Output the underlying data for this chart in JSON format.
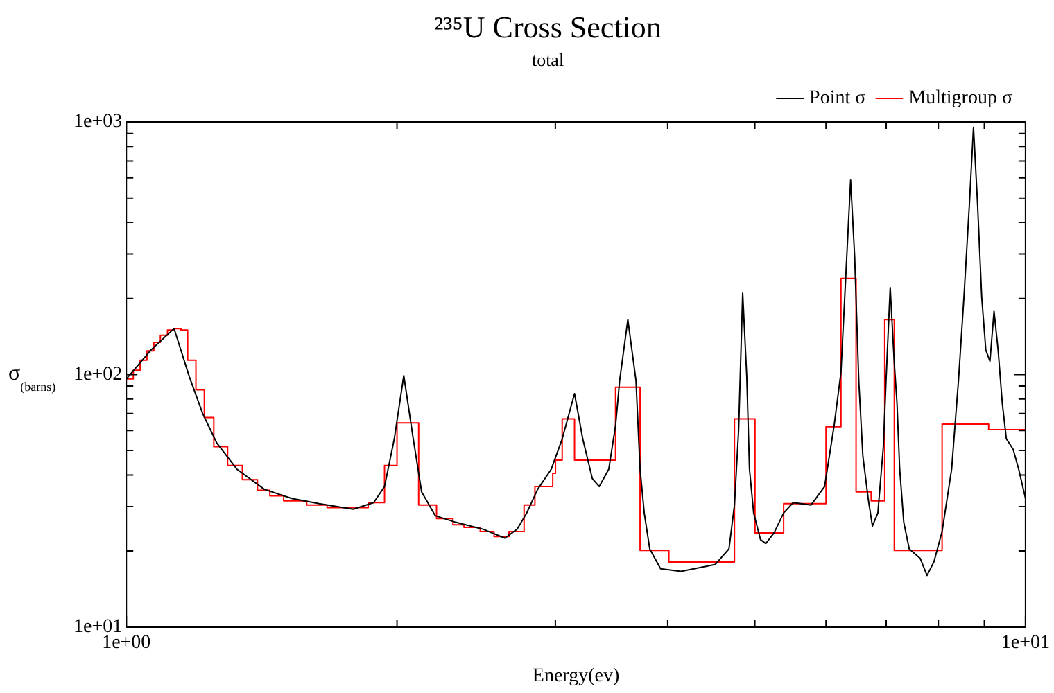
{
  "chart_data": {
    "type": "line",
    "title": "²³⁵U Cross Section",
    "subtitle": "total",
    "xlabel": "Energy(ev)",
    "ylabel": "σ$_{(barns)}$",
    "log": "xy",
    "legend": "top right",
    "marker": "none",
    "xlim": [
      1,
      10
    ],
    "ylim": [
      10,
      1000
    ],
    "xticks": [
      {
        "value": 1,
        "label": "1e+00"
      },
      {
        "value": 2,
        "label": null
      },
      {
        "value": 3,
        "label": null
      },
      {
        "value": 4,
        "label": null
      },
      {
        "value": 5,
        "label": null
      },
      {
        "value": 6,
        "label": null
      },
      {
        "value": 7,
        "label": null
      },
      {
        "value": 8,
        "label": null
      },
      {
        "value": 9,
        "label": null
      },
      {
        "value": 10,
        "label": "1e+01"
      }
    ],
    "yticks": [
      {
        "value": 10,
        "label": "1e+01"
      },
      {
        "value": 20,
        "label": null
      },
      {
        "value": 30,
        "label": null
      },
      {
        "value": 40,
        "label": null
      },
      {
        "value": 50,
        "label": null
      },
      {
        "value": 60,
        "label": null
      },
      {
        "value": 70,
        "label": null
      },
      {
        "value": 80,
        "label": null
      },
      {
        "value": 90,
        "label": null
      },
      {
        "value": 100,
        "label": "1e+02"
      },
      {
        "value": 200,
        "label": null
      },
      {
        "value": 300,
        "label": null
      },
      {
        "value": 400,
        "label": null
      },
      {
        "value": 500,
        "label": null
      },
      {
        "value": 600,
        "label": null
      },
      {
        "value": 700,
        "label": null
      },
      {
        "value": 800,
        "label": null
      },
      {
        "value": 900,
        "label": null
      },
      {
        "value": 1000,
        "label": "1e+03"
      }
    ],
    "series": [
      {
        "name": "Point σ",
        "type": "line",
        "color": "#000000",
        "x": [
          1.0,
          1.065,
          1.13,
          1.175,
          1.216,
          1.26,
          1.327,
          1.424,
          1.527,
          1.638,
          1.788,
          1.884,
          1.937,
          1.986,
          2.035,
          2.085,
          2.13,
          2.206,
          2.324,
          2.493,
          2.636,
          2.72,
          2.788,
          2.867,
          2.969,
          3.053,
          3.151,
          3.218,
          3.298,
          3.357,
          3.44,
          3.5,
          3.537,
          3.612,
          3.688,
          3.727,
          3.767,
          3.82,
          3.928,
          4.14,
          4.519,
          4.68,
          4.746,
          4.797,
          4.847,
          4.898,
          4.932,
          4.985,
          5.073,
          5.143,
          5.253,
          5.383,
          5.516,
          5.773,
          5.978,
          6.126,
          6.234,
          6.39,
          6.457,
          6.525,
          6.594,
          6.687,
          6.757,
          6.852,
          6.949,
          6.998,
          7.072,
          7.146,
          7.196,
          7.246,
          7.322,
          7.425,
          7.636,
          7.771,
          7.909,
          8.077,
          8.277,
          8.423,
          8.542,
          8.662,
          8.753,
          8.845,
          8.939,
          9.034,
          9.13,
          9.226,
          9.323,
          9.423,
          9.522,
          9.69,
          9.827,
          10.0
        ],
        "values": [
          96,
          125,
          152,
          98,
          70,
          53.7,
          42.2,
          35.1,
          32.3,
          30.8,
          29.3,
          31.1,
          36.0,
          55.6,
          99,
          55.6,
          34.3,
          27.6,
          26.0,
          24.4,
          22.5,
          24.4,
          28.3,
          35.1,
          42.2,
          55.6,
          84,
          55.6,
          38.7,
          36.0,
          42.2,
          62.8,
          94.6,
          165,
          94.6,
          42.2,
          28.3,
          20.4,
          17.0,
          16.6,
          17.7,
          20.4,
          30.4,
          60.5,
          210,
          98,
          42.2,
          28.3,
          22.2,
          21.4,
          23.6,
          28.3,
          31.1,
          30.4,
          36.0,
          62.8,
          102,
          588,
          292,
          94.6,
          47.5,
          31.9,
          25.1,
          28.3,
          51.8,
          96,
          221,
          111,
          77,
          42.2,
          26.0,
          20.4,
          18.7,
          16.0,
          18.1,
          23.9,
          42.2,
          94.6,
          203,
          473,
          952,
          473,
          203,
          125,
          113,
          178,
          125,
          77,
          55.6,
          50.5,
          42.2,
          32.3
        ]
      },
      {
        "name": "Multigroup σ",
        "type": "step",
        "color": "#ff0000",
        "x": [
          1.0,
          1.018,
          1.036,
          1.054,
          1.073,
          1.091,
          1.111,
          1.13,
          1.15,
          1.17,
          1.195,
          1.221,
          1.251,
          1.296,
          1.346,
          1.399,
          1.444,
          1.496,
          1.587,
          1.672,
          1.858,
          1.937,
          2.0,
          2.114,
          2.213,
          2.308,
          2.374,
          2.475,
          2.564,
          2.664,
          2.769,
          2.847,
          2.98,
          3.001,
          3.053,
          3.151,
          3.5,
          3.727,
          4.012,
          4.746,
          5.002,
          5.383,
          6.0,
          6.234,
          6.48,
          6.736,
          6.973,
          7.146,
          8.077,
          9.1,
          10.0
        ],
        "values": [
          96,
          104,
          114,
          124,
          134,
          143,
          150,
          152,
          150,
          114,
          87,
          67.5,
          51.8,
          43.6,
          38.3,
          34.8,
          33.1,
          31.6,
          30.4,
          29.7,
          31.1,
          43.6,
          64.3,
          30.4,
          26.9,
          25.4,
          24.8,
          23.9,
          22.8,
          23.9,
          30.4,
          36.0,
          40.6,
          45.8,
          66.7,
          45.8,
          89,
          20.1,
          18.1,
          66.7,
          23.6,
          30.8,
          62.1,
          240,
          34.3,
          31.6,
          165,
          20.1,
          63.6,
          60.5,
          60.5
        ]
      }
    ]
  }
}
